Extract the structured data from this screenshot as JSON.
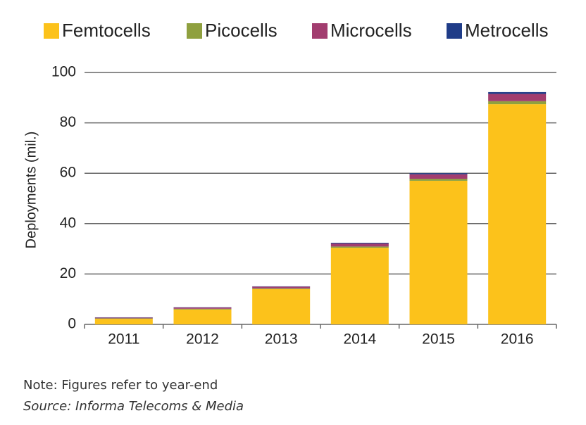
{
  "chart_data": {
    "type": "stacked-bar",
    "categories": [
      "2011",
      "2012",
      "2013",
      "2014",
      "2015",
      "2016"
    ],
    "series": [
      {
        "name": "Femtocells",
        "color": "#fcc21b",
        "values": [
          2.2,
          5.9,
          14,
          30.4,
          57,
          87.4
        ]
      },
      {
        "name": "Picocells",
        "color": "#8fa03f",
        "values": [
          0.2,
          0.3,
          0.3,
          0.5,
          0.8,
          1.2
        ]
      },
      {
        "name": "Microcells",
        "color": "#a23d6f",
        "values": [
          0.3,
          0.5,
          0.7,
          1.2,
          1.8,
          2.9
        ]
      },
      {
        "name": "Metrocells",
        "color": "#1f3c88",
        "values": [
          0.1,
          0.1,
          0.1,
          0.3,
          0.4,
          0.7
        ]
      }
    ],
    "y_label": "Deployments (mil.)",
    "ylim": [
      0,
      100
    ],
    "yticks": [
      0,
      20,
      40,
      60,
      80,
      100
    ],
    "grid": true,
    "note": "Note: Figures refer to year-end",
    "source": "Source: Informa Telecoms & Media"
  }
}
